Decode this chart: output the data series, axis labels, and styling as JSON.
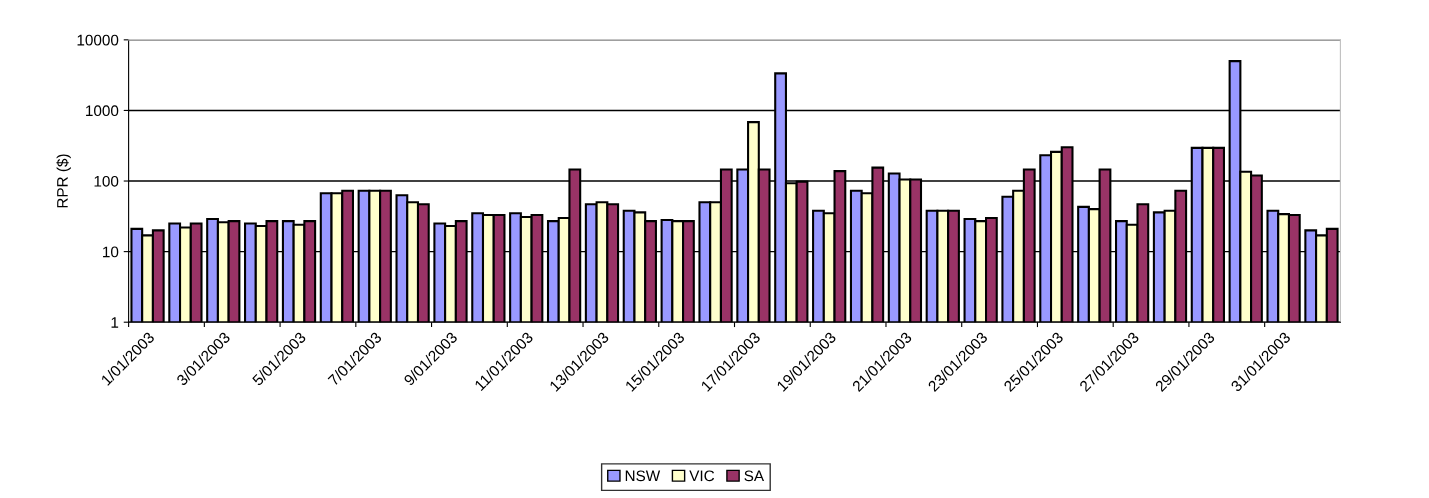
{
  "chart_data": {
    "type": "bar",
    "ylabel": "RPR ($)",
    "categories": [
      "1/01/2003",
      null,
      "3/01/2003",
      null,
      "5/01/2003",
      null,
      "7/01/2003",
      null,
      "9/01/2003",
      null,
      "11/01/2003",
      null,
      "13/01/2003",
      null,
      "15/01/2003",
      null,
      "17/01/2003",
      null,
      "19/01/2003",
      null,
      "21/01/2003",
      null,
      "23/01/2003",
      null,
      "25/01/2003",
      null,
      "27/01/2003",
      null,
      "29/01/2003",
      null,
      "31/01/2003",
      null
    ],
    "series": [
      {
        "name": "NSW",
        "color": "#9999ff",
        "values": [
          21,
          25,
          29,
          25,
          27,
          67,
          73,
          63,
          25,
          35,
          35,
          27,
          47,
          38,
          28,
          50,
          146,
          3350,
          38,
          73,
          128,
          38,
          29,
          60,
          232,
          43,
          27,
          36,
          295,
          5000,
          38,
          20
        ]
      },
      {
        "name": "VIC",
        "color": "#ffffcc",
        "values": [
          17,
          22,
          26,
          23,
          24,
          67,
          73,
          50,
          23,
          33,
          31,
          30,
          50,
          36,
          27,
          50,
          683,
          93,
          35,
          67,
          105,
          38,
          27,
          73,
          259,
          40,
          24,
          38,
          295,
          135,
          34,
          17
        ]
      },
      {
        "name": "SA",
        "color": "#993366",
        "values": [
          20,
          25,
          27,
          27,
          27,
          73,
          73,
          47,
          27,
          33,
          33,
          146,
          47,
          27,
          27,
          146,
          146,
          98,
          138,
          155,
          105,
          38,
          30,
          146,
          301,
          146,
          47,
          73,
          295,
          120,
          33,
          21
        ]
      }
    ],
    "log": true,
    "ylim": [
      1,
      10000
    ],
    "yticks": [
      1,
      10,
      100,
      1000,
      10000
    ],
    "grid": "y",
    "legend": "bottom"
  }
}
